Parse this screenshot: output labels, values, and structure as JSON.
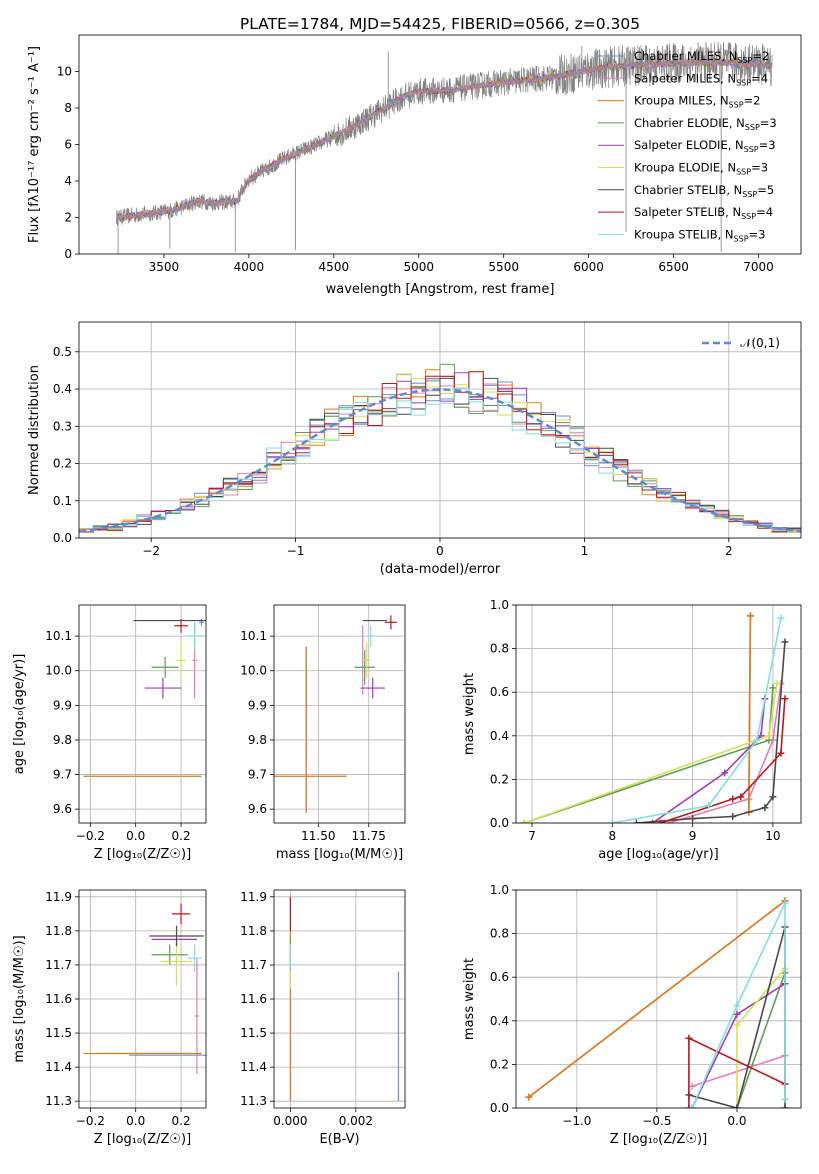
{
  "figure_title": "PLATE=1784, MJD=54425, FIBERID=0566, z=0.305",
  "colors": {
    "Chabrier MILES": "#6f8ed8",
    "Salpeter MILES": "#e37fb4",
    "Kroupa MILES": "#e07b1c",
    "Chabrier ELODIE": "#5f9e57",
    "Salpeter ELODIE": "#9f3fb5",
    "Kroupa ELODIE": "#d8df5a",
    "Chabrier STELIB": "#4a4a4a",
    "Salpeter STELIB": "#b01c20",
    "Kroupa STELIB": "#86dde0"
  },
  "chart_data": [
    {
      "id": "spectrum",
      "type": "line",
      "xlabel": "wavelength [Angstrom, rest frame]",
      "ylabel": "Flux [fλ10⁻¹⁷ erg cm⁻² s⁻¹ A⁻¹]",
      "xlim": [
        3000,
        7250
      ],
      "ylim": [
        0,
        12
      ],
      "xticks": [
        "3500",
        "4000",
        "4500",
        "5000",
        "5500",
        "6000",
        "6500",
        "7000"
      ],
      "yticks": [
        "0",
        "2",
        "4",
        "6",
        "8",
        "10"
      ],
      "grid": false,
      "legend_placement": "upper right",
      "legend": [
        {
          "name": "Chabrier MILES, N",
          "sub": "SSP",
          "suffix": "=2"
        },
        {
          "name": "Salpeter MILES, N",
          "sub": "SSP",
          "suffix": "=4"
        },
        {
          "name": "Kroupa MILES, N",
          "sub": "SSP",
          "suffix": "=2"
        },
        {
          "name": "Chabrier ELODIE, N",
          "sub": "SSP",
          "suffix": "=3"
        },
        {
          "name": "Salpeter ELODIE, N",
          "sub": "SSP",
          "suffix": "=3"
        },
        {
          "name": "Kroupa ELODIE, N",
          "sub": "SSP",
          "suffix": "=3"
        },
        {
          "name": "Chabrier STELIB, N",
          "sub": "SSP",
          "suffix": "=5"
        },
        {
          "name": "Salpeter STELIB, N",
          "sub": "SSP",
          "suffix": "=4"
        },
        {
          "name": "Kroupa STELIB, N",
          "sub": "SSP",
          "suffix": "=3"
        }
      ],
      "data_range": [
        3220,
        7080
      ],
      "continuum": [
        [
          3220,
          2.0
        ],
        [
          3400,
          2.2
        ],
        [
          3550,
          2.4
        ],
        [
          3700,
          2.9
        ],
        [
          3800,
          2.8
        ],
        [
          3930,
          2.9
        ],
        [
          3960,
          3.5
        ],
        [
          4000,
          4.1
        ],
        [
          4200,
          5.2
        ],
        [
          4400,
          6.0
        ],
        [
          4600,
          6.9
        ],
        [
          4800,
          8.0
        ],
        [
          4900,
          8.6
        ],
        [
          5000,
          8.9
        ],
        [
          5200,
          9.0
        ],
        [
          5400,
          9.3
        ],
        [
          5600,
          9.5
        ],
        [
          5800,
          9.7
        ],
        [
          6000,
          10.1
        ],
        [
          6200,
          10.3
        ],
        [
          6400,
          10.4
        ],
        [
          6600,
          10.5
        ],
        [
          6800,
          10.5
        ],
        [
          7000,
          10.4
        ],
        [
          7080,
          10.3
        ]
      ],
      "spikes": [
        [
          3230,
          0
        ],
        [
          3535,
          0.3
        ],
        [
          3920,
          0.1
        ],
        [
          4275,
          0.2
        ],
        [
          6220,
          1.2
        ],
        [
          6780,
          0.1
        ],
        [
          4820,
          11.1
        ],
        [
          5960,
          11.4
        ]
      ]
    },
    {
      "id": "residual_histogram",
      "type": "histogram",
      "xlabel": "(data-model)/error",
      "ylabel": "Normed distribution",
      "xlim": [
        -2.5,
        2.5
      ],
      "ylim": [
        0,
        0.58
      ],
      "xticks": [
        "−2",
        "−1",
        "0",
        "1",
        "2"
      ],
      "yticks": [
        "0.0",
        "0.1",
        "0.2",
        "0.3",
        "0.4",
        "0.5"
      ],
      "grid": true,
      "legend_placement": "upper right",
      "legend": [
        {
          "name": "𝒩(0,1)"
        }
      ],
      "bin_width": 0.1,
      "reference_curve": {
        "name": "𝒩(0,1)",
        "mean": 0,
        "sigma": 1,
        "color": "#5b8bd4"
      }
    },
    {
      "id": "age_vs_Z",
      "type": "errorbar",
      "xlabel": "Z [log₁₀(Z/Z☉)]",
      "ylabel": "age  [log₁₀(age/yr)]",
      "xlim": [
        -0.25,
        0.31
      ],
      "ylim": [
        9.56,
        10.19
      ],
      "xticks": [
        "−0.2",
        "0.0",
        "0.2"
      ],
      "xtick_values": [
        -0.2,
        0,
        0.2
      ],
      "yticks": [
        "9.6",
        "9.7",
        "9.8",
        "9.9",
        "10.0",
        "10.1"
      ],
      "ytick_values": [
        9.6,
        9.7,
        9.8,
        9.9,
        10.0,
        10.1
      ],
      "grid": true,
      "points": [
        {
          "series": "Chabrier MILES",
          "x": 0.29,
          "xerr": 0.01,
          "y": 10.14,
          "yerr": 0.01
        },
        {
          "series": "Salpeter MILES",
          "x": 0.26,
          "xerr": 0.01,
          "y": 10.03,
          "yerr": 0.11
        },
        {
          "series": "Kroupa MILES",
          "x": 0.03,
          "xerr": 0.26,
          "y": 9.695,
          "yerr": 0.0
        },
        {
          "series": "Chabrier ELODIE",
          "x": 0.13,
          "xerr": 0.06,
          "y": 10.01,
          "yerr": 0.03
        },
        {
          "series": "Salpeter ELODIE",
          "x": 0.12,
          "xerr": 0.08,
          "y": 9.95,
          "yerr": 0.03
        },
        {
          "series": "Kroupa ELODIE",
          "x": 0.2,
          "xerr": 0.02,
          "y": 10.03,
          "yerr": 0.05
        },
        {
          "series": "Chabrier STELIB",
          "x": 0.15,
          "xerr": 0.16,
          "y": 10.145,
          "yerr": 0.0
        },
        {
          "series": "Salpeter STELIB",
          "x": 0.2,
          "xerr": 0.03,
          "y": 10.13,
          "yerr": 0.02
        },
        {
          "series": "Kroupa STELIB",
          "x": 0.26,
          "xerr": 0.04,
          "y": 10.1,
          "yerr": 0.04
        }
      ]
    },
    {
      "id": "age_vs_mass",
      "type": "errorbar",
      "xlabel": "mass [log₁₀(M/M☉)]",
      "ylabel": "",
      "xlim": [
        11.28,
        11.93
      ],
      "ylim": [
        9.56,
        10.19
      ],
      "xticks": [
        "11.50",
        "11.75"
      ],
      "xtick_values": [
        11.5,
        11.75
      ],
      "yticks": [
        "9.6",
        "9.7",
        "9.8",
        "9.9",
        "10.0",
        "10.1"
      ],
      "ytick_values": [
        9.6,
        9.7,
        9.8,
        9.9,
        10.0,
        10.1
      ],
      "grid": true,
      "points": [
        {
          "series": "Chabrier MILES",
          "x": 11.44,
          "xerr": 0.0,
          "y": 9.83,
          "yerr": 0.24
        },
        {
          "series": "Salpeter MILES",
          "x": 11.72,
          "xerr": 0.0,
          "y": 10.03,
          "yerr": 0.1
        },
        {
          "series": "Kroupa MILES",
          "x": 11.44,
          "xerr": 0.0,
          "y": 9.83,
          "yerr": 0.24
        },
        {
          "series": "Chabrier ELODIE",
          "x": 11.73,
          "xerr": 0.05,
          "y": 10.01,
          "yerr": 0.05
        },
        {
          "series": "Salpeter ELODIE",
          "x": 11.77,
          "xerr": 0.06,
          "y": 9.95,
          "yerr": 0.03
        },
        {
          "series": "Kroupa ELODIE",
          "x": 11.74,
          "xerr": 0.02,
          "y": 10.03,
          "yerr": 0.05
        },
        {
          "series": "Chabrier STELIB",
          "x": 11.78,
          "xerr": 0.06,
          "y": 10.145,
          "yerr": 0.0
        },
        {
          "series": "Salpeter STELIB",
          "x": 11.86,
          "xerr": 0.03,
          "y": 10.14,
          "yerr": 0.02
        },
        {
          "series": "Kroupa STELIB",
          "x": 11.76,
          "xerr": 0.02,
          "y": 10.1,
          "yerr": 0.03
        },
        {
          "series": "Kroupa MILES",
          "x": 11.44,
          "xerr": 0.2,
          "y": 9.695,
          "yerr": 0.0
        }
      ]
    },
    {
      "id": "mass_weight_vs_age",
      "type": "line",
      "xlabel": "age  [log₁₀(age/yr)]",
      "ylabel": "mass weight",
      "xlim": [
        6.8,
        10.35
      ],
      "ylim": [
        0,
        1
      ],
      "xticks": [
        "7",
        "8",
        "9",
        "10"
      ],
      "xtick_values": [
        7,
        8,
        9,
        10
      ],
      "yticks": [
        "0.0",
        "0.2",
        "0.4",
        "0.6",
        "0.8",
        "1.0"
      ],
      "ytick_values": [
        0,
        0.2,
        0.4,
        0.6,
        0.8,
        1.0
      ],
      "grid": true,
      "series": [
        {
          "name": "Chabrier MILES",
          "x": [
            9.7,
            9.72
          ],
          "y": [
            0.05,
            0.95
          ]
        },
        {
          "name": "Salpeter MILES",
          "x": [
            8.7,
            9.7,
            10.0,
            10.1
          ],
          "y": [
            0.0,
            0.11,
            0.38,
            0.64
          ]
        },
        {
          "name": "Kroupa MILES",
          "x": [
            9.7,
            9.72
          ],
          "y": [
            0.05,
            0.95
          ]
        },
        {
          "name": "Chabrier ELODIE",
          "x": [
            6.9,
            9.95,
            10.0
          ],
          "y": [
            0.0,
            0.38,
            0.62
          ]
        },
        {
          "name": "Salpeter ELODIE",
          "x": [
            8.5,
            9.4,
            9.85,
            9.9
          ],
          "y": [
            0.0,
            0.23,
            0.4,
            0.57
          ]
        },
        {
          "name": "Kroupa ELODIE",
          "x": [
            6.9,
            9.95,
            10.05
          ],
          "y": [
            0.0,
            0.4,
            0.64
          ]
        },
        {
          "name": "Chabrier STELIB",
          "x": [
            8.3,
            9.0,
            9.5,
            9.9,
            10.0,
            10.15
          ],
          "y": [
            0.0,
            0.02,
            0.03,
            0.07,
            0.12,
            0.83
          ]
        },
        {
          "name": "Salpeter STELIB",
          "x": [
            8.6,
            9.5,
            9.6,
            10.1,
            10.15
          ],
          "y": [
            0.0,
            0.11,
            0.12,
            0.32,
            0.57
          ]
        },
        {
          "name": "Kroupa STELIB",
          "x": [
            8.0,
            9.2,
            9.8,
            10.1
          ],
          "y": [
            0.0,
            0.08,
            0.38,
            0.94
          ]
        }
      ]
    },
    {
      "id": "mass_vs_Z",
      "type": "errorbar",
      "xlabel": "Z [log₁₀(Z/Z☉)]",
      "ylabel": "mass [log₁₀(M/M☉)]",
      "xlim": [
        -0.25,
        0.31
      ],
      "ylim": [
        11.28,
        11.92
      ],
      "xticks": [
        "−0.2",
        "0.0",
        "0.2"
      ],
      "xtick_values": [
        -0.2,
        0,
        0.2
      ],
      "yticks": [
        "11.3",
        "11.4",
        "11.5",
        "11.6",
        "11.7",
        "11.8",
        "11.9"
      ],
      "ytick_values": [
        11.3,
        11.4,
        11.5,
        11.6,
        11.7,
        11.8,
        11.9
      ],
      "grid": true,
      "points": [
        {
          "series": "Chabrier MILES",
          "x": 0.28,
          "xerr": 0.01,
          "y": 11.44,
          "yerr": 0.0
        },
        {
          "series": "Salpeter MILES",
          "x": 0.27,
          "xerr": 0.01,
          "y": 11.55,
          "yerr": 0.17
        },
        {
          "series": "Kroupa MILES",
          "x": 0.03,
          "xerr": 0.26,
          "y": 11.44,
          "yerr": 0.0
        },
        {
          "series": "Chabrier ELODIE",
          "x": 0.15,
          "xerr": 0.08,
          "y": 11.73,
          "yerr": 0.03
        },
        {
          "series": "Salpeter ELODIE",
          "x": 0.17,
          "xerr": 0.1,
          "y": 11.775,
          "yerr": 0.0
        },
        {
          "series": "Kroupa ELODIE",
          "x": 0.18,
          "xerr": 0.07,
          "y": 11.71,
          "yerr": 0.07
        },
        {
          "series": "Chabrier STELIB",
          "x": 0.18,
          "xerr": 0.12,
          "y": 11.785,
          "yerr": 0.03
        },
        {
          "series": "Salpeter STELIB",
          "x": 0.2,
          "xerr": 0.04,
          "y": 11.85,
          "yerr": 0.03
        },
        {
          "series": "Kroupa STELIB",
          "x": 0.26,
          "xerr": 0.03,
          "y": 11.72,
          "yerr": 0.04
        },
        {
          "series": "Chabrier MILES",
          "x": 0.16,
          "xerr": 0.19,
          "y": 11.435,
          "yerr": 0.0
        }
      ]
    },
    {
      "id": "mass_vs_EBV",
      "type": "errorbar",
      "xlabel": "E(B-V)",
      "ylabel": "",
      "xlim": [
        -0.0005,
        0.0035
      ],
      "ylim": [
        11.28,
        11.92
      ],
      "xticks": [
        "0.000",
        "0.002"
      ],
      "xtick_values": [
        0,
        0.002
      ],
      "yticks": [
        "11.3",
        "11.4",
        "11.5",
        "11.6",
        "11.7",
        "11.8",
        "11.9"
      ],
      "ytick_values": [
        11.3,
        11.4,
        11.5,
        11.6,
        11.7,
        11.8,
        11.9
      ],
      "grid": true,
      "points": [
        {
          "series": "Kroupa MILES",
          "x": 0.0,
          "xerr": 0.0,
          "y": 11.55,
          "yerr": 0.25
        },
        {
          "series": "Salpeter STELIB",
          "x": 0.0,
          "xerr": 0.0,
          "y": 11.85,
          "yerr": 0.05
        },
        {
          "series": "Kroupa ELODIE",
          "x": 0.0,
          "xerr": 0.0,
          "y": 11.7,
          "yerr": 0.07
        },
        {
          "series": "Chabrier ELODIE",
          "x": 0.0,
          "xerr": 0.0,
          "y": 11.73,
          "yerr": 0.05
        },
        {
          "series": "Kroupa STELIB",
          "x": 0.0,
          "xerr": 0.0,
          "y": 11.72,
          "yerr": 0.04
        },
        {
          "series": "Chabrier MILES",
          "x": 0.0033,
          "xerr": 0.0,
          "y": 11.49,
          "yerr": 0.19
        }
      ]
    },
    {
      "id": "mass_weight_vs_Z",
      "type": "line",
      "xlabel": "Z [log₁₀(Z/Z☉)]",
      "ylabel": "mass weight",
      "xlim": [
        -1.38,
        0.4
      ],
      "ylim": [
        0,
        1
      ],
      "xticks": [
        "−1.0",
        "−0.5",
        "0.0"
      ],
      "xtick_values": [
        -1,
        -0.5,
        0
      ],
      "yticks": [
        "0.0",
        "0.2",
        "0.4",
        "0.6",
        "0.8",
        "1.0"
      ],
      "ytick_values": [
        0,
        0.2,
        0.4,
        0.6,
        0.8,
        1.0
      ],
      "grid": true,
      "series": [
        {
          "name": "Chabrier MILES",
          "x": [
            -1.3,
            0.3
          ],
          "y": [
            0.05,
            0.95
          ]
        },
        {
          "name": "Salpeter MILES",
          "x": [
            -0.28,
            0.3
          ],
          "y": [
            0.1,
            0.24
          ]
        },
        {
          "name": "Kroupa MILES",
          "x": [
            -1.3,
            0.3
          ],
          "y": [
            0.05,
            0.95
          ]
        },
        {
          "name": "Chabrier ELODIE",
          "x": [
            0.0,
            0.3
          ],
          "y": [
            0.0,
            0.62
          ]
        },
        {
          "name": "Salpeter ELODIE",
          "x": [
            -0.28,
            0.0,
            0.3
          ],
          "y": [
            0.0,
            0.43,
            0.57
          ]
        },
        {
          "name": "Kroupa ELODIE",
          "x": [
            0.0,
            0.0,
            0.3
          ],
          "y": [
            0.0,
            0.38,
            0.64
          ]
        },
        {
          "name": "Chabrier STELIB",
          "x": [
            -0.3,
            0.0,
            0.3,
            0.3
          ],
          "y": [
            0.06,
            0.0,
            0.83,
            0.0
          ]
        },
        {
          "name": "Salpeter STELIB",
          "x": [
            -0.3,
            -0.3,
            0.3
          ],
          "y": [
            0.0,
            0.32,
            0.11
          ]
        },
        {
          "name": "Kroupa STELIB",
          "x": [
            -0.28,
            0.0,
            0.3,
            0.3
          ],
          "y": [
            0.0,
            0.47,
            0.94,
            0.04
          ]
        }
      ]
    }
  ]
}
